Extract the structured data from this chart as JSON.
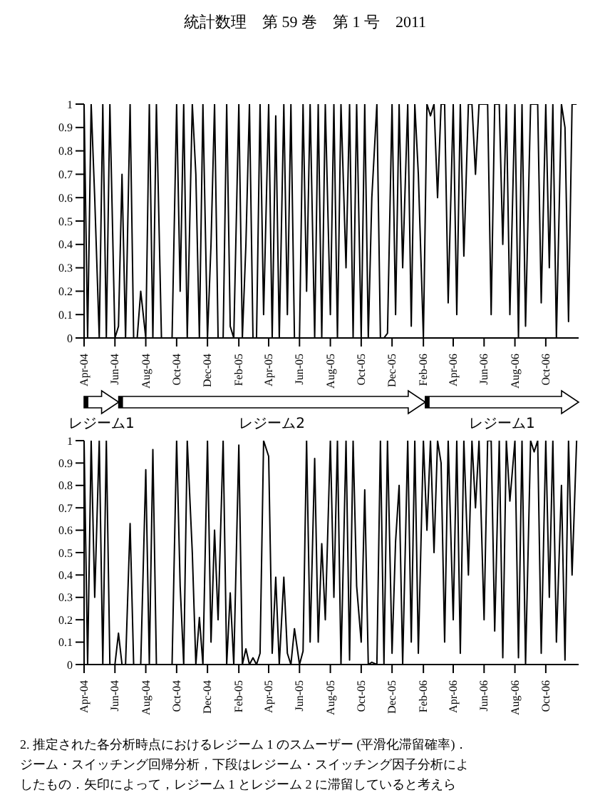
{
  "chart_data": [
    {
      "type": "line",
      "annotations": [
        "統計数理　第 59 巻　第 1 号　2011",
        "レジーム1",
        "レジーム2",
        "レジーム1"
      ],
      "x": [
        "2004-04-01",
        "2004-04-08",
        "2004-04-15",
        "2004-04-22",
        "2004-05-01",
        "2004-05-08",
        "2004-05-15",
        "2004-05-22",
        "2004-06-01",
        "2004-06-08",
        "2004-06-15",
        "2004-06-22",
        "2004-07-01",
        "2004-07-08",
        "2004-07-15",
        "2004-07-22",
        "2004-08-01",
        "2004-08-08",
        "2004-08-15",
        "2004-08-22",
        "2004-09-01",
        "2004-09-08",
        "2004-09-15",
        "2004-09-22",
        "2004-10-01",
        "2004-10-08",
        "2004-10-15",
        "2004-10-22",
        "2004-11-01",
        "2004-11-08",
        "2004-11-15",
        "2004-11-22",
        "2004-12-01",
        "2004-12-08",
        "2004-12-15",
        "2004-12-22",
        "2005-01-01",
        "2005-01-08",
        "2005-01-15",
        "2005-01-22",
        "2005-02-01",
        "2005-02-08",
        "2005-02-15",
        "2005-02-22",
        "2005-03-01",
        "2005-03-08",
        "2005-03-15",
        "2005-03-22",
        "2005-04-01",
        "2005-04-08",
        "2005-04-15",
        "2005-04-22",
        "2005-05-01",
        "2005-05-08",
        "2005-05-15",
        "2005-05-22",
        "2005-06-01",
        "2005-06-08",
        "2005-06-15",
        "2005-06-22",
        "2005-07-01",
        "2005-07-08",
        "2005-07-15",
        "2005-07-22",
        "2005-08-01",
        "2005-08-08",
        "2005-08-15",
        "2005-08-22",
        "2005-09-01",
        "2005-09-08",
        "2005-09-15",
        "2005-09-22",
        "2005-10-01",
        "2005-10-08",
        "2005-10-15",
        "2005-10-22",
        "2005-11-01",
        "2005-11-08",
        "2005-11-15",
        "2005-11-22",
        "2005-12-01",
        "2005-12-08",
        "2005-12-15",
        "2005-12-22",
        "2006-01-01",
        "2006-01-08",
        "2006-01-15",
        "2006-01-22",
        "2006-02-01",
        "2006-02-08",
        "2006-02-15",
        "2006-02-22",
        "2006-03-01",
        "2006-03-08",
        "2006-03-15",
        "2006-03-22",
        "2006-04-01",
        "2006-04-08",
        "2006-04-15",
        "2006-04-22",
        "2006-05-01",
        "2006-05-08",
        "2006-05-15",
        "2006-05-22",
        "2006-06-01",
        "2006-06-08",
        "2006-06-15",
        "2006-06-22",
        "2006-07-01",
        "2006-07-08",
        "2006-07-15",
        "2006-07-22",
        "2006-08-01",
        "2006-08-08",
        "2006-08-15",
        "2006-08-22",
        "2006-09-01",
        "2006-09-08",
        "2006-09-15",
        "2006-09-22",
        "2006-10-01",
        "2006-10-08",
        "2006-10-15",
        "2006-10-22",
        "2006-11-01",
        "2006-11-08",
        "2006-11-15",
        "2006-11-22",
        "2006-12-01"
      ],
      "series": [
        {
          "color": "#000000",
          "values": [
            1,
            0,
            1,
            0.6,
            0,
            1,
            0,
            1,
            0,
            0.05,
            0.7,
            0,
            1,
            0,
            0,
            0.2,
            0,
            1,
            0,
            1,
            0,
            0,
            0,
            0,
            1,
            0.2,
            1,
            0,
            1,
            0.7,
            0,
            1,
            0,
            0.4,
            1,
            0,
            0,
            1,
            0.05,
            0,
            1,
            0,
            0.4,
            1,
            0,
            0,
            1,
            0.1,
            1,
            0,
            0.95,
            0,
            1,
            0.1,
            1,
            0,
            0,
            1,
            0.2,
            1,
            0,
            1,
            0,
            1,
            0.1,
            1,
            0,
            1,
            0.3,
            1,
            0,
            1,
            0,
            1,
            0,
            0.6,
            1,
            0,
            0,
            0.02,
            1,
            0.1,
            1,
            0.3,
            1,
            0.05,
            1,
            0.7,
            0,
            1,
            0.95,
            1,
            0.6,
            1,
            1,
            0.15,
            1,
            0.1,
            1,
            0.35,
            1,
            1,
            0.7,
            1,
            1,
            1,
            0.1,
            1,
            1,
            0.4,
            1,
            0.1,
            1,
            0,
            1,
            0.05,
            1,
            1,
            1,
            0.15,
            1,
            0.3,
            1,
            0,
            1,
            0.9,
            0.07,
            1,
            1
          ]
        }
      ],
      "xlim": [
        "2004-04-01",
        "2006-12-05"
      ],
      "xticks": [
        {
          "value": "2004-04",
          "label": "Apr-04"
        },
        {
          "value": "2004-06",
          "label": "Jun-04"
        },
        {
          "value": "2004-08",
          "label": "Aug-04"
        },
        {
          "value": "2004-10",
          "label": "Oct-04"
        },
        {
          "value": "2004-12",
          "label": "Dec-04"
        },
        {
          "value": "2005-02",
          "label": "Feb-05"
        },
        {
          "value": "2005-04",
          "label": "Apr-05"
        },
        {
          "value": "2005-06",
          "label": "Jun-05"
        },
        {
          "value": "2005-08",
          "label": "Aug-05"
        },
        {
          "value": "2005-10",
          "label": "Oct-05"
        },
        {
          "value": "2005-12",
          "label": "Dec-05"
        },
        {
          "value": "2006-02",
          "label": "Feb-06"
        },
        {
          "value": "2006-04",
          "label": "Apr-06"
        },
        {
          "value": "2006-06",
          "label": "Jun-06"
        },
        {
          "value": "2006-08",
          "label": "Aug-06"
        },
        {
          "value": "2006-10",
          "label": "Oct-06"
        }
      ],
      "ylim": [
        0,
        1
      ],
      "yticks": [
        0,
        0.1,
        0.2,
        0.3,
        0.4,
        0.5,
        0.6,
        0.7,
        0.8,
        0.9,
        1
      ],
      "marker": "none"
    },
    {
      "type": "line",
      "annotations": [
        "2.  推定された各分析時点におけるレジーム 1 のスムーザー (平滑化滞留確率)．",
        "ジーム・スイッチング回帰分析，下段はレジーム・スイッチング因子分析によ",
        "したもの．矢印によって，レジーム 1 とレジーム 2 に滞留していると考えら"
      ],
      "x": [
        "2004-04-01",
        "2004-04-08",
        "2004-04-15",
        "2004-04-22",
        "2004-05-01",
        "2004-05-08",
        "2004-05-15",
        "2004-05-22",
        "2004-06-01",
        "2004-06-08",
        "2004-06-15",
        "2004-06-22",
        "2004-07-01",
        "2004-07-08",
        "2004-07-15",
        "2004-07-22",
        "2004-08-01",
        "2004-08-08",
        "2004-08-15",
        "2004-08-22",
        "2004-09-01",
        "2004-09-08",
        "2004-09-15",
        "2004-09-22",
        "2004-10-01",
        "2004-10-08",
        "2004-10-15",
        "2004-10-22",
        "2004-11-01",
        "2004-11-08",
        "2004-11-15",
        "2004-11-22",
        "2004-12-01",
        "2004-12-08",
        "2004-12-15",
        "2004-12-22",
        "2005-01-01",
        "2005-01-08",
        "2005-01-15",
        "2005-01-22",
        "2005-02-01",
        "2005-02-08",
        "2005-02-15",
        "2005-02-22",
        "2005-03-01",
        "2005-03-08",
        "2005-03-15",
        "2005-03-22",
        "2005-04-01",
        "2005-04-08",
        "2005-04-15",
        "2005-04-22",
        "2005-05-01",
        "2005-05-08",
        "2005-05-15",
        "2005-05-22",
        "2005-06-01",
        "2005-06-08",
        "2005-06-15",
        "2005-06-22",
        "2005-07-01",
        "2005-07-08",
        "2005-07-15",
        "2005-07-22",
        "2005-08-01",
        "2005-08-08",
        "2005-08-15",
        "2005-08-22",
        "2005-09-01",
        "2005-09-08",
        "2005-09-15",
        "2005-09-22",
        "2005-10-01",
        "2005-10-08",
        "2005-10-15",
        "2005-10-22",
        "2005-11-01",
        "2005-11-08",
        "2005-11-15",
        "2005-11-22",
        "2005-12-01",
        "2005-12-08",
        "2005-12-15",
        "2005-12-22",
        "2006-01-01",
        "2006-01-08",
        "2006-01-15",
        "2006-01-22",
        "2006-02-01",
        "2006-02-08",
        "2006-02-15",
        "2006-02-22",
        "2006-03-01",
        "2006-03-08",
        "2006-03-15",
        "2006-03-22",
        "2006-04-01",
        "2006-04-08",
        "2006-04-15",
        "2006-04-22",
        "2006-05-01",
        "2006-05-08",
        "2006-05-15",
        "2006-05-22",
        "2006-06-01",
        "2006-06-08",
        "2006-06-15",
        "2006-06-22",
        "2006-07-01",
        "2006-07-08",
        "2006-07-15",
        "2006-07-22",
        "2006-08-01",
        "2006-08-08",
        "2006-08-15",
        "2006-08-22",
        "2006-09-01",
        "2006-09-08",
        "2006-09-15",
        "2006-09-22",
        "2006-10-01",
        "2006-10-08",
        "2006-10-15",
        "2006-10-22",
        "2006-11-01",
        "2006-11-08",
        "2006-11-15",
        "2006-11-22",
        "2006-12-01"
      ],
      "series": [
        {
          "color": "#000000",
          "values": [
            1,
            0,
            1,
            0.3,
            1,
            0,
            1,
            0,
            0,
            0.14,
            0,
            0,
            0.63,
            0,
            0,
            0,
            0.87,
            0,
            0.96,
            0,
            0,
            0,
            0,
            0,
            1,
            0.35,
            0,
            1,
            0.5,
            0,
            0.21,
            0,
            1,
            0.1,
            0.6,
            0.2,
            1,
            0,
            0.32,
            0,
            0.98,
            0,
            0.07,
            0,
            0.03,
            0,
            0.05,
            1,
            0.93,
            0.05,
            0.39,
            0,
            0.39,
            0.05,
            0,
            0.16,
            0,
            0.06,
            1,
            0.1,
            0.92,
            0.1,
            0.54,
            0.2,
            1,
            0.3,
            1,
            0,
            1,
            0.02,
            1,
            0.35,
            0.1,
            0.78,
            0,
            0.01,
            0,
            1,
            0,
            1,
            0.05,
            0.55,
            0.8,
            0,
            1,
            0.1,
            1,
            0.05,
            1,
            0.6,
            1,
            0.5,
            1,
            0.9,
            0.1,
            1,
            0.2,
            1,
            0.05,
            1,
            0.4,
            1,
            0.7,
            1,
            0.2,
            1,
            1,
            0.15,
            1,
            0.03,
            1,
            0.73,
            1,
            0.03,
            1,
            0,
            1,
            0.95,
            1,
            0.05,
            1,
            0.3,
            1,
            0.1,
            0.8,
            0.02,
            1,
            0.4,
            1
          ]
        }
      ],
      "xlim": [
        "2004-04-01",
        "2006-12-05"
      ],
      "xticks": [
        {
          "value": "2004-04",
          "label": "Apr-04"
        },
        {
          "value": "2004-06",
          "label": "Jun-04"
        },
        {
          "value": "2004-08",
          "label": "Aug-04"
        },
        {
          "value": "2004-10",
          "label": "Oct-04"
        },
        {
          "value": "2004-12",
          "label": "Dec-04"
        },
        {
          "value": "2005-02",
          "label": "Feb-05"
        },
        {
          "value": "2005-04",
          "label": "Apr-05"
        },
        {
          "value": "2005-06",
          "label": "Jun-05"
        },
        {
          "value": "2005-08",
          "label": "Aug-05"
        },
        {
          "value": "2005-10",
          "label": "Oct-05"
        },
        {
          "value": "2005-12",
          "label": "Dec-05"
        },
        {
          "value": "2006-02",
          "label": "Feb-06"
        },
        {
          "value": "2006-04",
          "label": "Apr-06"
        },
        {
          "value": "2006-06",
          "label": "Jun-06"
        },
        {
          "value": "2006-08",
          "label": "Aug-06"
        },
        {
          "value": "2006-10",
          "label": "Oct-06"
        }
      ],
      "ylim": [
        0,
        1
      ],
      "yticks": [
        0,
        0.1,
        0.2,
        0.3,
        0.4,
        0.5,
        0.6,
        0.7,
        0.8,
        0.9,
        1
      ],
      "marker": "none"
    }
  ]
}
